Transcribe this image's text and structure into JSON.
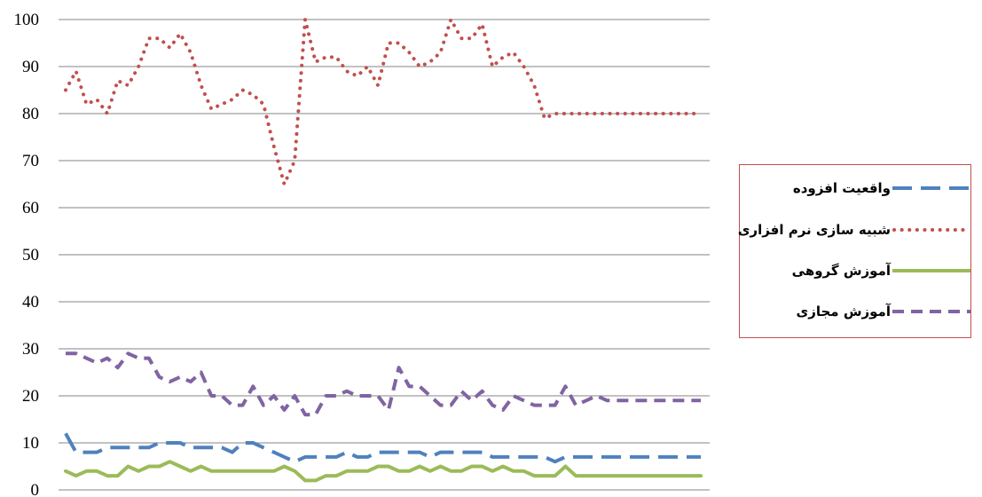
{
  "chart_data": {
    "type": "line",
    "ylim": [
      0,
      100
    ],
    "yticks": [
      "0",
      "10",
      "20",
      "30",
      "40",
      "50",
      "60",
      "70",
      "80",
      "90",
      "100"
    ],
    "grid": true,
    "legend_position": "right",
    "x": [
      1,
      2,
      3,
      4,
      5,
      6,
      7,
      8,
      9,
      10,
      11,
      12,
      13,
      14,
      15,
      16,
      17,
      18,
      19,
      20,
      21,
      22,
      23,
      24,
      25,
      26,
      27,
      28,
      29,
      30,
      31,
      32,
      33,
      34,
      35,
      36,
      37,
      38,
      39,
      40,
      41,
      42,
      43,
      44,
      45,
      46,
      47,
      48,
      49,
      50,
      51,
      52,
      53,
      54,
      55,
      56,
      57,
      58,
      59,
      60,
      61,
      62
    ],
    "series": [
      {
        "name": "واقعیت افزوده",
        "color": "#4f81bd",
        "style": "long-dash",
        "values": [
          12,
          8,
          8,
          8,
          9,
          9,
          9,
          9,
          9,
          10,
          10,
          10,
          9,
          9,
          9,
          9,
          8,
          10,
          10,
          9,
          8,
          7,
          6,
          7,
          7,
          7,
          7,
          8,
          7,
          7,
          8,
          8,
          8,
          8,
          8,
          7,
          8,
          8,
          8,
          8,
          8,
          7,
          7,
          7,
          7,
          7,
          7,
          6,
          7,
          7,
          7,
          7,
          7,
          7,
          7,
          7,
          7,
          7,
          7,
          7,
          7,
          7
        ]
      },
      {
        "name": "شبیه سازی نرم افزاری",
        "color": "#c0504d",
        "style": "dotted",
        "values": [
          85,
          89,
          82,
          83,
          80,
          87,
          86,
          90,
          96,
          96,
          94,
          97,
          93,
          86,
          81,
          82,
          83,
          85,
          84,
          82,
          73,
          65,
          70,
          100,
          91,
          92,
          92,
          89,
          88,
          90,
          86,
          95,
          95,
          93,
          90,
          91,
          93,
          100,
          96,
          96,
          99,
          90,
          92,
          93,
          90,
          86,
          79,
          80,
          80,
          80,
          80,
          80,
          80,
          80,
          80,
          80,
          80,
          80,
          80,
          80,
          80,
          80
        ]
      },
      {
        "name": "آموزش گروهی",
        "color": "#9bbb59",
        "style": "solid",
        "values": [
          4,
          3,
          4,
          4,
          3,
          3,
          5,
          4,
          5,
          5,
          6,
          5,
          4,
          5,
          4,
          4,
          4,
          4,
          4,
          4,
          4,
          5,
          4,
          2,
          2,
          3,
          3,
          4,
          4,
          4,
          5,
          5,
          4,
          4,
          5,
          4,
          5,
          4,
          4,
          5,
          5,
          4,
          5,
          4,
          4,
          3,
          3,
          3,
          5,
          3,
          3,
          3,
          3,
          3,
          3,
          3,
          3,
          3,
          3,
          3,
          3,
          3
        ]
      },
      {
        "name": "آموزش مجازی",
        "color": "#8064a2",
        "style": "dash",
        "values": [
          29,
          29,
          28,
          27,
          28,
          26,
          29,
          28,
          28,
          24,
          23,
          24,
          23,
          25,
          20,
          20,
          18,
          18,
          22,
          18,
          20,
          17,
          20,
          16,
          16,
          20,
          20,
          21,
          20,
          20,
          20,
          17,
          26,
          22,
          22,
          20,
          18,
          18,
          21,
          19,
          21,
          18,
          17,
          20,
          19,
          18,
          18,
          18,
          22,
          18,
          19,
          20,
          19,
          19,
          19,
          19,
          19,
          19,
          19,
          19,
          19,
          19
        ]
      }
    ]
  }
}
